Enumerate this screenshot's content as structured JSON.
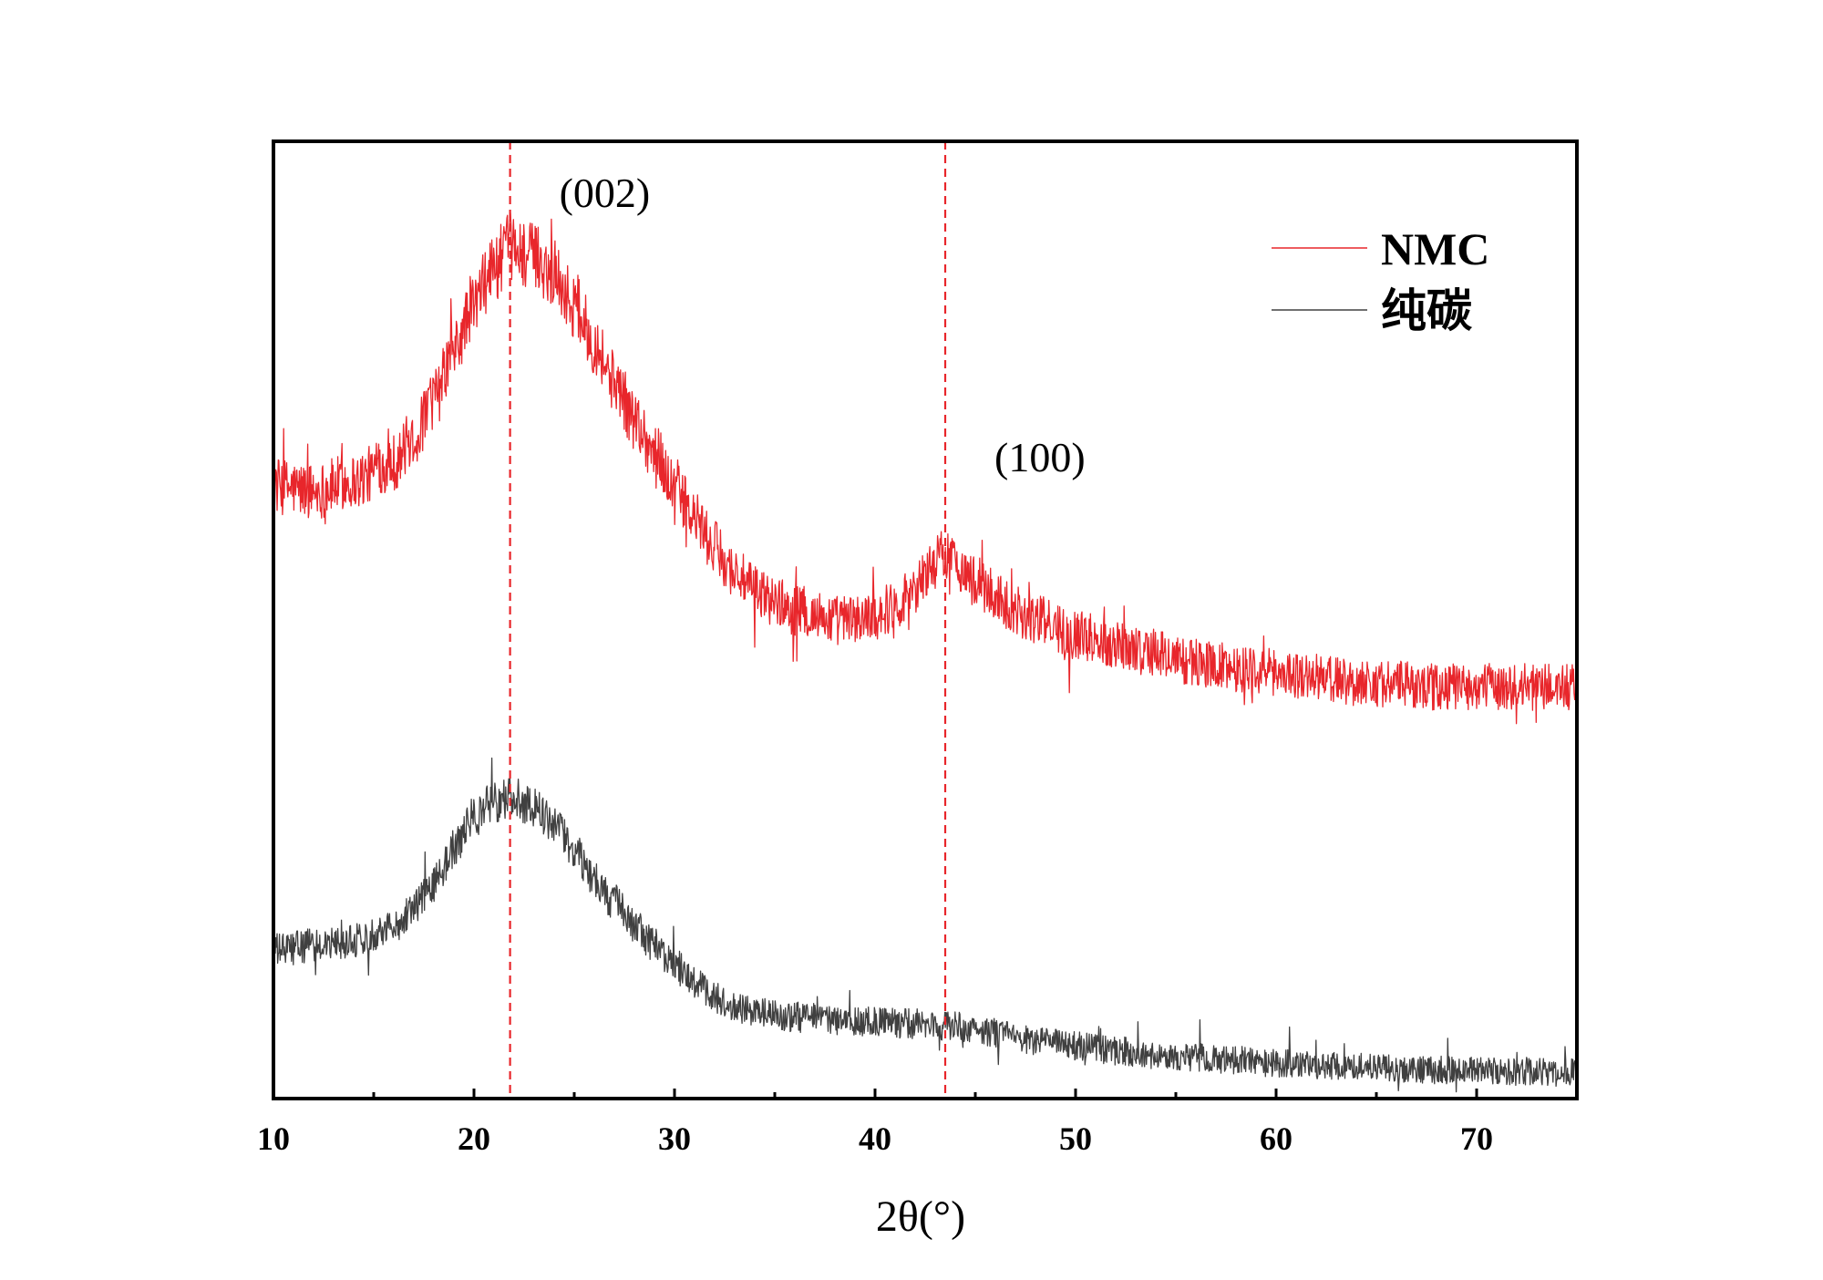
{
  "chart_data": {
    "type": "line",
    "title": "",
    "xlabel": "2θ(°)",
    "ylabel": "",
    "xlim": [
      10,
      75
    ],
    "ylim": [
      0,
      100
    ],
    "x_ticks": [
      10,
      20,
      30,
      40,
      50,
      60,
      70
    ],
    "x_tick_labels": [
      "10",
      "20",
      "30",
      "40",
      "50",
      "60",
      "70"
    ],
    "y_ticks_shown": false,
    "grid": false,
    "legend": {
      "position": "top-right"
    },
    "series": [
      {
        "name": "NMC",
        "color": "#e8262b",
        "noise": 2.5,
        "x": [
          10,
          12,
          14,
          16,
          17,
          18,
          19,
          20,
          21,
          21.8,
          23,
          24,
          25,
          26,
          27,
          28,
          29,
          30,
          31,
          32,
          33,
          34,
          35,
          36,
          37,
          38,
          39,
          40,
          41,
          42,
          43,
          43.5,
          44,
          45,
          46,
          47,
          48,
          50,
          52,
          54,
          56,
          58,
          60,
          62,
          64,
          66,
          68,
          70,
          72,
          75
        ],
        "values": [
          64,
          63.5,
          64.5,
          66.5,
          69,
          73,
          78,
          83,
          87,
          89,
          88,
          86,
          83,
          79,
          75,
          71,
          67.5,
          64,
          60.5,
          57.5,
          55,
          53,
          52,
          51,
          50.5,
          50,
          50,
          50.5,
          51.5,
          53.5,
          56,
          57,
          56,
          54,
          52.5,
          51,
          50,
          48.5,
          47.5,
          46.5,
          45.5,
          45,
          44.5,
          44,
          43.5,
          43.3,
          43,
          43,
          43,
          43
        ]
      },
      {
        "name": "纯碳",
        "color": "#404040",
        "noise": 2.5,
        "x": [
          10,
          12,
          14,
          16,
          17,
          18,
          19,
          20,
          21,
          21.8,
          23,
          24,
          25,
          26,
          27,
          28,
          29,
          30,
          31,
          32,
          33,
          34,
          35,
          36,
          38,
          40,
          42,
          44,
          46,
          48,
          50,
          52,
          54,
          56,
          58,
          60,
          62,
          64,
          66,
          68,
          70,
          72,
          75
        ],
        "values": [
          15.5,
          16,
          16.5,
          18,
          20,
          22.5,
          26,
          29.5,
          31,
          31.5,
          30.5,
          28.5,
          26,
          23,
          20.5,
          18,
          16,
          14,
          12,
          10.5,
          9.5,
          9,
          8.7,
          8.5,
          8.2,
          8,
          7.8,
          7.5,
          6.8,
          6,
          5.5,
          5,
          4.6,
          4.3,
          4,
          3.7,
          3.5,
          3.3,
          3.1,
          3,
          2.9,
          2.8,
          2.7
        ]
      }
    ],
    "annotations": [
      {
        "text": "(002)",
        "x": 21.8,
        "style": "red-dashed-line"
      },
      {
        "text": "(100)",
        "x": 43.5,
        "style": "red-dashed-line"
      }
    ],
    "reference_line_color": "#e8262b"
  }
}
